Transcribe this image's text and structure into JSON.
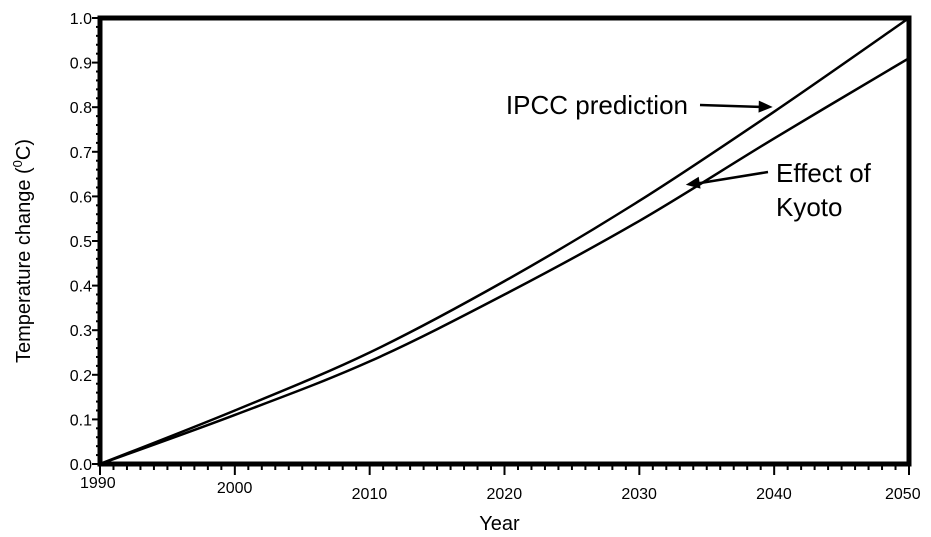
{
  "chart_data": {
    "type": "line",
    "title": "",
    "xlabel": "Year",
    "ylabel_main": "Temperature change (",
    "ylabel_sup": "0",
    "ylabel_end": "C)",
    "xlim": [
      1990,
      2050
    ],
    "ylim": [
      0.0,
      1.0
    ],
    "x_ticks": [
      1990,
      2000,
      2010,
      2020,
      2030,
      2040,
      2050
    ],
    "x_tick_labels": [
      "1990",
      "2000",
      "2010",
      "2020",
      "2030",
      "2040",
      "2050"
    ],
    "y_ticks": [
      0.0,
      0.1,
      0.2,
      0.3,
      0.4,
      0.5,
      0.6,
      0.7,
      0.8,
      0.9,
      1.0
    ],
    "y_tick_labels": [
      "0.0",
      "0.1",
      "0.2",
      "0.3",
      "0.4",
      "0.5",
      "0.6",
      "0.7",
      "0.8",
      "0.9",
      "1.0"
    ],
    "grid": false,
    "x": [
      1990,
      2000,
      2010,
      2020,
      2030,
      2040,
      2050
    ],
    "series": [
      {
        "key": "ipcc",
        "values": [
          0.0,
          0.12,
          0.25,
          0.41,
          0.59,
          0.79,
          1.0
        ]
      },
      {
        "key": "kyoto",
        "values": [
          0.0,
          0.11,
          0.23,
          0.38,
          0.545,
          0.73,
          0.91
        ]
      }
    ],
    "annotations": [
      {
        "key": "ipcc",
        "text_lines": [
          "IPCC prediction"
        ],
        "arrow_to": [
          2039,
          0.805
        ]
      },
      {
        "key": "kyoto",
        "text_lines": [
          "Effect of",
          "Kyoto"
        ],
        "arrow_to": [
          2033,
          0.635
        ]
      }
    ]
  }
}
